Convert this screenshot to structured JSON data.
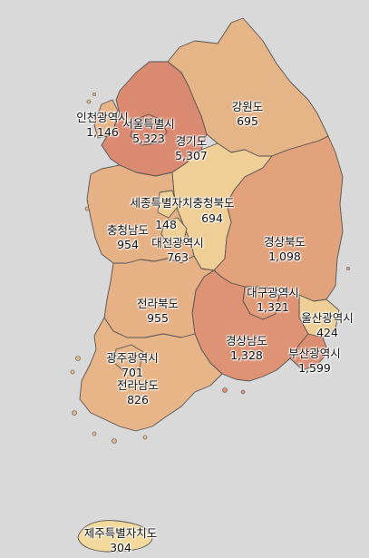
{
  "regions": {
    "seoul": {
      "name": "서울특별시",
      "value": "5,323",
      "color": "#db8a72"
    },
    "gyeonggi": {
      "name": "경기도",
      "value": "5,307",
      "color": "#db8a72"
    },
    "incheon": {
      "name": "인천광역시",
      "value": "1,146",
      "color": "#e8b588"
    },
    "gangwon": {
      "name": "강원도",
      "value": "695",
      "color": "#e5b487"
    },
    "sejong": {
      "name": "세종특별자치시",
      "value": "148",
      "color": "#efcf95"
    },
    "chungbuk": {
      "name": "충청북도",
      "value": "694",
      "color": "#efcf95"
    },
    "chungnam": {
      "name": "충청남도",
      "value": "954",
      "color": "#e7b186"
    },
    "daejeon": {
      "name": "대전광역시",
      "value": "763",
      "color": "#efcf95"
    },
    "gyeongbuk": {
      "name": "경상북도",
      "value": "1,098",
      "color": "#e2a27b"
    },
    "daegu": {
      "name": "대구광역시",
      "value": "1,321",
      "color": "#e09c77"
    },
    "jeonbuk": {
      "name": "전라북도",
      "value": "955",
      "color": "#e7b186"
    },
    "gyeongnam": {
      "name": "경상남도",
      "value": "1,328",
      "color": "#de9374"
    },
    "ulsan": {
      "name": "울산광역시",
      "value": "424",
      "color": "#efcf95"
    },
    "busan": {
      "name": "부산광역시",
      "value": "1,599",
      "color": "#dc8e73"
    },
    "gwangju": {
      "name": "광주광역시",
      "value": "701",
      "color": "#e8b588"
    },
    "jeonnam": {
      "name": "전라남도",
      "value": "826",
      "color": "#e8b588"
    },
    "jeju": {
      "name": "제주특별자치도",
      "value": "304",
      "color": "#f3d99b"
    }
  },
  "display": {
    "sejong_chungbuk_label": "세종특별자치충청북도"
  },
  "style": {
    "background": "#d9d9d9",
    "border": "#555555"
  }
}
